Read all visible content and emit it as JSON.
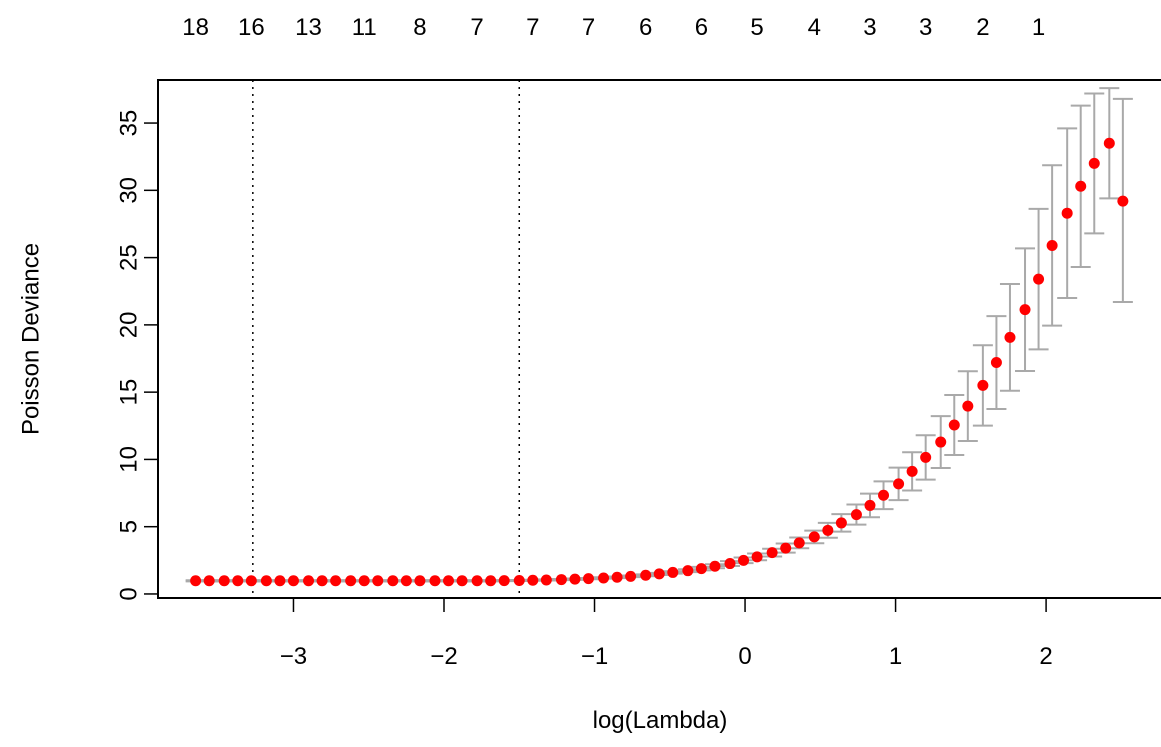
{
  "chart_data": {
    "type": "scatter",
    "title": "",
    "xlabel": "log(Lambda)",
    "ylabel": "Poisson Deviance",
    "xlim": [
      -3.9,
      2.77
    ],
    "ylim": [
      -0.3,
      38.2
    ],
    "xticks": [
      -3,
      -2,
      -1,
      0,
      1,
      2
    ],
    "xtick_labels": [
      "−3",
      "−2",
      "−1",
      "0",
      "1",
      "2"
    ],
    "yticks": [
      0,
      5,
      10,
      15,
      20,
      25,
      30,
      35
    ],
    "ytick_labels": [
      "0",
      "5",
      "10",
      "15",
      "20",
      "25",
      "30",
      "35"
    ],
    "top_axis": {
      "positions": [
        -3.65,
        -3.28,
        -2.9,
        -2.53,
        -2.16,
        -1.78,
        -1.41,
        -1.04,
        -0.66,
        -0.29,
        0.08,
        0.46,
        0.83,
        1.2,
        1.58,
        1.95
      ],
      "labels": [
        "18",
        "16",
        "13",
        "11",
        "8",
        "7",
        "7",
        "7",
        "6",
        "6",
        "5",
        "4",
        "3",
        "3",
        "2",
        "1"
      ]
    },
    "reference_lines": [
      -3.27,
      -1.5
    ],
    "grid": false,
    "point_color": "#ff0000",
    "errorbar_color": "#a9a9a9",
    "reference_line_color": "#000000",
    "log_lambda": [
      -3.65,
      -3.56,
      -3.46,
      -3.37,
      -3.28,
      -3.18,
      -3.09,
      -3.0,
      -2.9,
      -2.81,
      -2.72,
      -2.62,
      -2.53,
      -2.44,
      -2.34,
      -2.25,
      -2.16,
      -2.06,
      -1.97,
      -1.88,
      -1.78,
      -1.69,
      -1.6,
      -1.5,
      -1.41,
      -1.32,
      -1.22,
      -1.13,
      -1.04,
      -0.94,
      -0.85,
      -0.76,
      -0.66,
      -0.57,
      -0.48,
      -0.38,
      -0.29,
      -0.2,
      -0.1,
      -0.01,
      0.08,
      0.18,
      0.27,
      0.36,
      0.46,
      0.55,
      0.64,
      0.74,
      0.83,
      0.92,
      1.02,
      1.11,
      1.2,
      1.3,
      1.39,
      1.48,
      1.58,
      1.67,
      1.76,
      1.86,
      1.95,
      2.04,
      2.14,
      2.23,
      2.32,
      2.42,
      2.51
    ],
    "mean_deviance": [
      0.98,
      0.98,
      0.98,
      0.98,
      0.98,
      0.98,
      0.98,
      0.98,
      0.98,
      0.98,
      0.98,
      0.98,
      0.98,
      0.98,
      0.98,
      0.98,
      0.98,
      0.98,
      0.98,
      0.98,
      0.98,
      0.98,
      0.99,
      1.0,
      1.02,
      1.04,
      1.07,
      1.1,
      1.14,
      1.19,
      1.24,
      1.31,
      1.39,
      1.49,
      1.6,
      1.73,
      1.88,
      2.06,
      2.26,
      2.5,
      2.76,
      3.07,
      3.41,
      3.8,
      4.24,
      4.73,
      5.28,
      5.9,
      6.58,
      7.34,
      8.18,
      9.11,
      10.15,
      11.29,
      12.56,
      13.96,
      15.5,
      17.2,
      19.07,
      21.13,
      23.4,
      25.9,
      28.3,
      30.3,
      32.0,
      33.5,
      29.2
    ],
    "upper": [
      1.02,
      1.02,
      1.02,
      1.02,
      1.02,
      1.02,
      1.02,
      1.02,
      1.02,
      1.02,
      1.02,
      1.02,
      1.02,
      1.02,
      1.02,
      1.02,
      1.02,
      1.02,
      1.02,
      1.02,
      1.02,
      1.02,
      1.03,
      1.04,
      1.06,
      1.08,
      1.11,
      1.15,
      1.19,
      1.24,
      1.3,
      1.37,
      1.46,
      1.57,
      1.69,
      1.84,
      2.01,
      2.21,
      2.44,
      2.71,
      3.01,
      3.36,
      3.75,
      4.2,
      4.71,
      5.28,
      5.93,
      6.65,
      7.46,
      8.37,
      9.39,
      10.53,
      11.8,
      13.22,
      14.79,
      16.55,
      18.49,
      20.65,
      23.04,
      25.69,
      28.62,
      31.86,
      34.6,
      36.3,
      37.2,
      37.6,
      36.8
    ],
    "lower": [
      0.94,
      0.94,
      0.94,
      0.94,
      0.94,
      0.94,
      0.94,
      0.94,
      0.94,
      0.94,
      0.94,
      0.94,
      0.94,
      0.94,
      0.94,
      0.94,
      0.94,
      0.94,
      0.94,
      0.94,
      0.94,
      0.94,
      0.95,
      0.96,
      0.98,
      1.0,
      1.03,
      1.05,
      1.09,
      1.14,
      1.18,
      1.25,
      1.32,
      1.41,
      1.51,
      1.62,
      1.75,
      1.91,
      2.08,
      2.29,
      2.51,
      2.78,
      3.07,
      3.4,
      3.77,
      4.18,
      4.63,
      5.15,
      5.7,
      6.31,
      6.97,
      7.69,
      8.5,
      9.36,
      10.33,
      11.37,
      12.51,
      13.75,
      15.1,
      16.57,
      18.18,
      19.94,
      22.0,
      24.3,
      26.8,
      29.4,
      21.7
    ]
  }
}
